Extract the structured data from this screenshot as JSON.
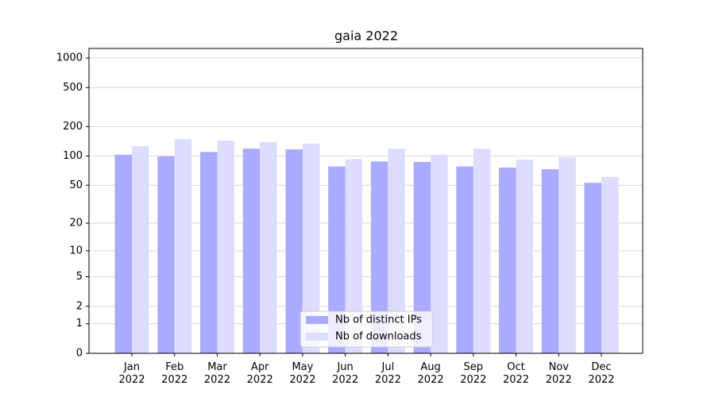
{
  "chart_data": {
    "type": "bar",
    "title": "gaia 2022",
    "scale": "log1p",
    "grid": true,
    "legend": "lower center",
    "categories": [
      "Jan\n2022",
      "Feb\n2022",
      "Mar\n2022",
      "Apr\n2022",
      "May\n2022",
      "Jun\n2022",
      "Jul\n2022",
      "Aug\n2022",
      "Sep\n2022",
      "Oct\n2022",
      "Nov\n2022",
      "Dec\n2022"
    ],
    "series": [
      {
        "name": "Nb of distinct IPs",
        "color": "#aaaaff",
        "values": [
          103,
          99,
          110,
          119,
          117,
          78,
          88,
          87,
          78,
          76,
          73,
          53
        ]
      },
      {
        "name": "Nb of downloads",
        "color": "#ddddff",
        "values": [
          126,
          149,
          144,
          139,
          134,
          93,
          119,
          103,
          119,
          92,
          97,
          61
        ]
      }
    ],
    "ylim": [
      0,
      1250
    ],
    "yticks": [
      0,
      1,
      2,
      5,
      10,
      20,
      50,
      100,
      200,
      500,
      1000
    ]
  }
}
